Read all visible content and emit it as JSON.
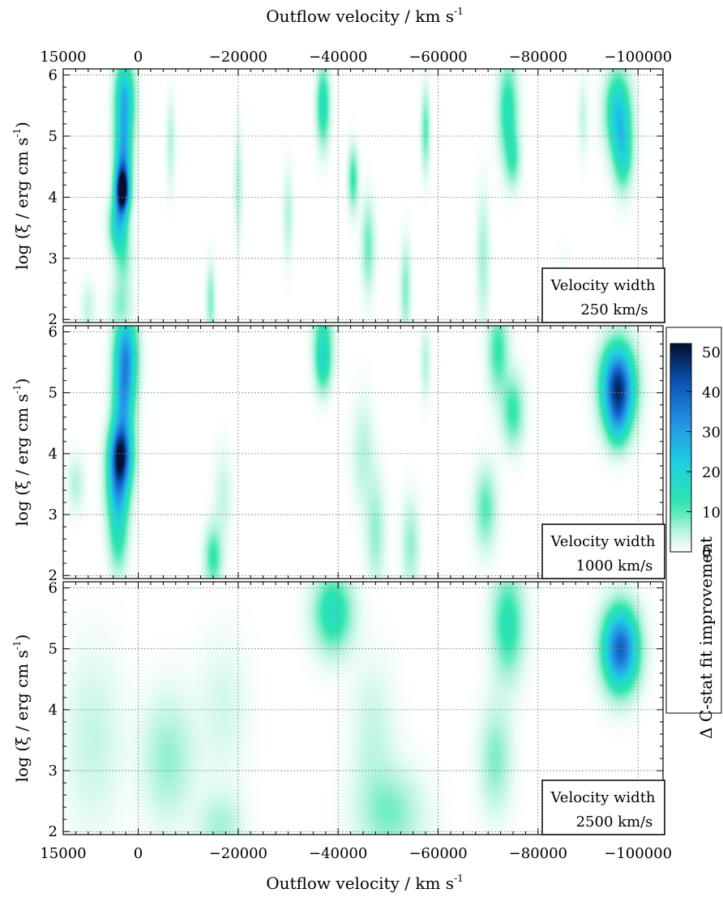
{
  "chart_data": {
    "type": "heatmap",
    "x_axis": {
      "label": "Outflow velocity / km s",
      "label_superscript": "-1",
      "range": [
        15000,
        -105000
      ],
      "ticks": [
        15000,
        0,
        -20000,
        -40000,
        -60000,
        -80000,
        -100000
      ],
      "tick_labels": [
        "15000",
        "0",
        "−20000",
        "−40000",
        "−60000",
        "−80000",
        "−100000"
      ],
      "top_and_bottom": true
    },
    "y_axis": {
      "label": "log (ξ / erg cm s",
      "label_superscript": "-1",
      "label_close": ")",
      "range": [
        1.95,
        6.1
      ],
      "ticks": [
        2,
        3,
        4,
        5,
        6
      ],
      "tick_labels": [
        "2",
        "3",
        "4",
        "5",
        "6"
      ]
    },
    "grid": true,
    "colorbar": {
      "label": "Δ C-stat fit improvement",
      "range": [
        0,
        52
      ],
      "ticks": [
        0,
        10,
        20,
        30,
        40,
        50
      ],
      "tick_labels": [
        "0",
        "10",
        "20",
        "30",
        "40",
        "50"
      ],
      "stops": [
        {
          "v": 0,
          "color": "#ffffff"
        },
        {
          "v": 6,
          "color": "#a8f2d8"
        },
        {
          "v": 12,
          "color": "#2ee6ad"
        },
        {
          "v": 22,
          "color": "#1ed0e0"
        },
        {
          "v": 32,
          "color": "#2495e6"
        },
        {
          "v": 42,
          "color": "#0b55b8"
        },
        {
          "v": 52,
          "color": "#03112e"
        }
      ]
    },
    "panels": [
      {
        "box_line1": "Velocity width",
        "box_line2": "250 km/s",
        "blobs": [
          {
            "v": 2700,
            "l": 5.6,
            "sv": 1300,
            "sl": 0.45,
            "a": 26
          },
          {
            "v": 3000,
            "l": 4.6,
            "sv": 1100,
            "sl": 0.45,
            "a": 28
          },
          {
            "v": 3200,
            "l": 4.1,
            "sv": 900,
            "sl": 0.25,
            "a": 50
          },
          {
            "v": 4000,
            "l": 3.55,
            "sv": 1200,
            "sl": 0.3,
            "a": 20
          },
          {
            "v": 3000,
            "l": 3.0,
            "sv": 1200,
            "sl": 0.35,
            "a": 8
          },
          {
            "v": 3500,
            "l": 2.2,
            "sv": 1500,
            "sl": 0.3,
            "a": 7
          },
          {
            "v": -37000,
            "l": 5.5,
            "sv": 900,
            "sl": 0.45,
            "a": 16
          },
          {
            "v": -74000,
            "l": 5.4,
            "sv": 1300,
            "sl": 0.55,
            "a": 15
          },
          {
            "v": -75000,
            "l": 4.6,
            "sv": 1000,
            "sl": 0.3,
            "a": 9
          },
          {
            "v": -96000,
            "l": 5.4,
            "sv": 1700,
            "sl": 0.45,
            "a": 22
          },
          {
            "v": -97000,
            "l": 4.7,
            "sv": 1300,
            "sl": 0.4,
            "a": 16
          },
          {
            "v": -43000,
            "l": 4.3,
            "sv": 700,
            "sl": 0.35,
            "a": 12
          },
          {
            "v": -57500,
            "l": 5.1,
            "sv": 600,
            "sl": 0.45,
            "a": 10
          },
          {
            "v": -46000,
            "l": 3.2,
            "sv": 900,
            "sl": 0.5,
            "a": 9
          },
          {
            "v": -53500,
            "l": 2.5,
            "sv": 700,
            "sl": 0.5,
            "a": 8
          },
          {
            "v": -14500,
            "l": 2.3,
            "sv": 600,
            "sl": 0.4,
            "a": 8
          },
          {
            "v": -6500,
            "l": 4.9,
            "sv": 600,
            "sl": 0.5,
            "a": 5
          },
          {
            "v": -20000,
            "l": 4.2,
            "sv": 600,
            "sl": 0.6,
            "a": 5
          },
          {
            "v": -30000,
            "l": 3.7,
            "sv": 700,
            "sl": 0.5,
            "a": 5
          },
          {
            "v": -69000,
            "l": 3.0,
            "sv": 900,
            "sl": 0.7,
            "a": 6
          },
          {
            "v": -85000,
            "l": 2.3,
            "sv": 1000,
            "sl": 0.4,
            "a": 4
          },
          {
            "v": 10000,
            "l": 2.2,
            "sv": 1000,
            "sl": 0.3,
            "a": 4
          },
          {
            "v": -89000,
            "l": 5.3,
            "sv": 700,
            "sl": 0.4,
            "a": 4
          }
        ]
      },
      {
        "box_line1": "Velocity width",
        "box_line2": "1000 km/s",
        "blobs": [
          {
            "v": 2500,
            "l": 5.6,
            "sv": 1500,
            "sl": 0.5,
            "a": 32
          },
          {
            "v": 3000,
            "l": 4.8,
            "sv": 1400,
            "sl": 0.4,
            "a": 20
          },
          {
            "v": 3500,
            "l": 4.0,
            "sv": 1500,
            "sl": 0.35,
            "a": 45
          },
          {
            "v": 4000,
            "l": 3.4,
            "sv": 1500,
            "sl": 0.4,
            "a": 25
          },
          {
            "v": 4000,
            "l": 2.6,
            "sv": 1300,
            "sl": 0.4,
            "a": 12
          },
          {
            "v": -37000,
            "l": 5.9,
            "sv": 1300,
            "sl": 0.4,
            "a": 13
          },
          {
            "v": -37000,
            "l": 5.4,
            "sv": 1100,
            "sl": 0.3,
            "a": 11
          },
          {
            "v": -72000,
            "l": 5.7,
            "sv": 1400,
            "sl": 0.5,
            "a": 12
          },
          {
            "v": -75000,
            "l": 4.7,
            "sv": 1500,
            "sl": 0.4,
            "a": 12
          },
          {
            "v": -96000,
            "l": 5.1,
            "sv": 2200,
            "sl": 0.45,
            "a": 47
          },
          {
            "v": -96000,
            "l": 4.5,
            "sv": 1500,
            "sl": 0.3,
            "a": 12
          },
          {
            "v": -69500,
            "l": 3.1,
            "sv": 1500,
            "sl": 0.45,
            "a": 10
          },
          {
            "v": -15000,
            "l": 2.3,
            "sv": 1200,
            "sl": 0.35,
            "a": 12
          },
          {
            "v": -45000,
            "l": 4.0,
            "sv": 1500,
            "sl": 0.6,
            "a": 5
          },
          {
            "v": -47500,
            "l": 2.7,
            "sv": 1300,
            "sl": 0.6,
            "a": 7
          },
          {
            "v": -54500,
            "l": 2.5,
            "sv": 1200,
            "sl": 0.5,
            "a": 7
          },
          {
            "v": -57500,
            "l": 5.5,
            "sv": 700,
            "sl": 0.4,
            "a": 5
          },
          {
            "v": -17000,
            "l": 3.3,
            "sv": 1200,
            "sl": 0.5,
            "a": 4
          },
          {
            "v": 12500,
            "l": 3.5,
            "sv": 1200,
            "sl": 0.3,
            "a": 5
          }
        ]
      },
      {
        "box_line1": "Velocity width",
        "box_line2": "2500 km/s",
        "blobs": [
          {
            "v": -39000,
            "l": 5.6,
            "sv": 2700,
            "sl": 0.45,
            "a": 16
          },
          {
            "v": -74000,
            "l": 5.4,
            "sv": 2200,
            "sl": 0.6,
            "a": 14
          },
          {
            "v": -96500,
            "l": 5.0,
            "sv": 2400,
            "sl": 0.45,
            "a": 40
          },
          {
            "v": -6000,
            "l": 3.2,
            "sv": 3500,
            "sl": 0.7,
            "a": 7
          },
          {
            "v": -16500,
            "l": 2.1,
            "sv": 3000,
            "sl": 0.35,
            "a": 6
          },
          {
            "v": -50500,
            "l": 2.3,
            "sv": 4500,
            "sl": 0.5,
            "a": 8
          },
          {
            "v": -71500,
            "l": 3.2,
            "sv": 2200,
            "sl": 0.6,
            "a": 8
          },
          {
            "v": 9000,
            "l": 3.5,
            "sv": 4000,
            "sl": 1.0,
            "a": 4
          },
          {
            "v": -47000,
            "l": 3.6,
            "sv": 3000,
            "sl": 0.8,
            "a": 4
          },
          {
            "v": -17000,
            "l": 4.0,
            "sv": 3500,
            "sl": 0.8,
            "a": 3
          }
        ]
      }
    ]
  }
}
